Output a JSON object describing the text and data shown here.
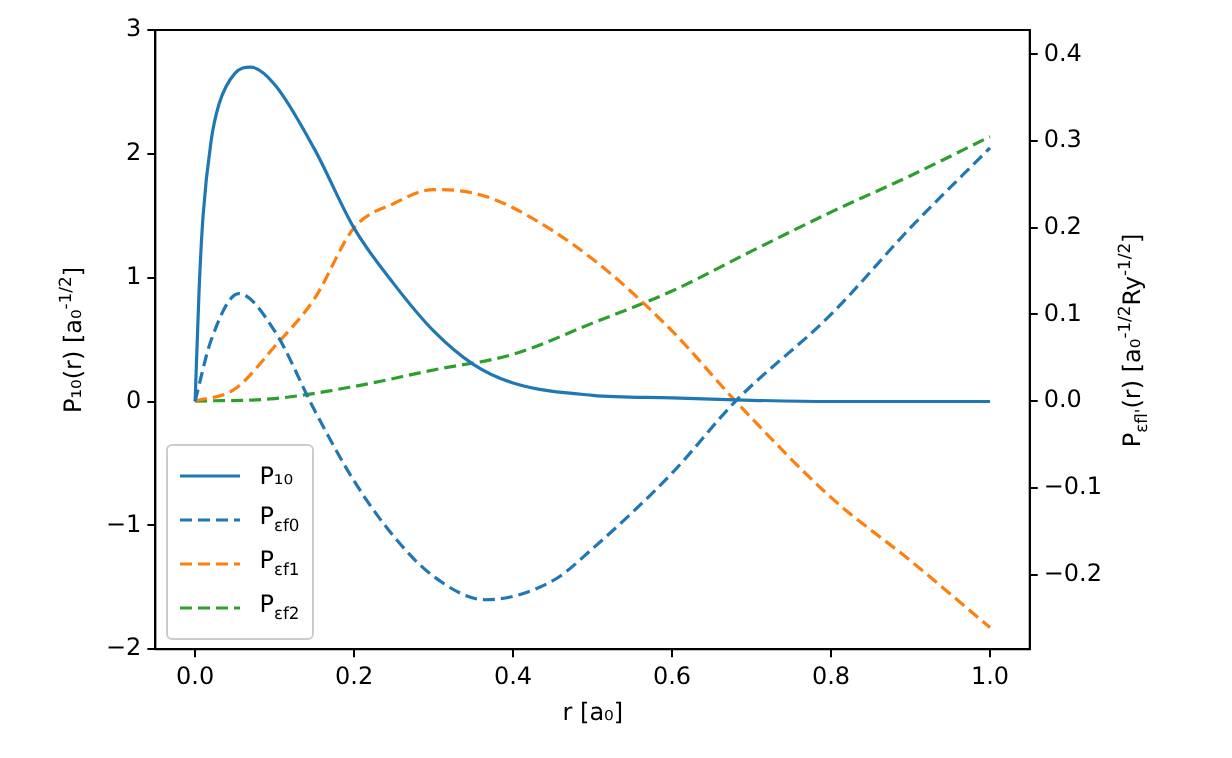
{
  "chart_data": {
    "type": "line",
    "xlabel": "r [a₀]",
    "ylabel": "P₁₀(r) [a₀$^{-1/2}$]",
    "y2label": "P$_{εfl'}$(r) [a₀$^{-1/2}$Ry$^{-1/2}$]",
    "xlim": [
      -0.05,
      1.05
    ],
    "xticks": [
      {
        "value": 0,
        "label": "0.0"
      },
      {
        "value": 0.2,
        "label": "0.2"
      },
      {
        "value": 0.4,
        "label": "0.4"
      },
      {
        "value": 0.6,
        "label": "0.6"
      },
      {
        "value": 0.8,
        "label": "0.8"
      },
      {
        "value": 1,
        "label": "1.0"
      }
    ],
    "ylim": [
      -2,
      3
    ],
    "yticks": [
      -2,
      -1,
      0,
      1,
      2,
      3
    ],
    "y2lim": [
      -0.286,
      0.428
    ],
    "y2ticks": [
      {
        "value": -0.2,
        "label": "−0.2"
      },
      {
        "value": -0.1,
        "label": "−0.1"
      },
      {
        "value": 0,
        "label": "0.0"
      },
      {
        "value": 0.1,
        "label": "0.1"
      },
      {
        "value": 0.2,
        "label": "0.2"
      },
      {
        "value": 0.3,
        "label": "0.3"
      },
      {
        "value": 0.4,
        "label": "0.4"
      }
    ],
    "grid": false,
    "legend": "bottom left",
    "marker": "none",
    "series": [
      {
        "name": "P₁₀",
        "color": "#1f77b4",
        "line_style": "solid",
        "x": [
          0,
          0.005,
          0.01,
          0.02,
          0.03,
          0.05,
          0.07,
          0.1,
          0.15,
          0.2,
          0.25,
          0.3,
          0.35,
          0.4,
          0.5,
          0.6,
          0.7,
          0.8,
          1.0
        ],
        "values": [
          0,
          0.9,
          1.5,
          2.1,
          2.4,
          2.65,
          2.7,
          2.56,
          2.04,
          1.4,
          0.95,
          0.57,
          0.3,
          0.15,
          0.05,
          0.03,
          0.01,
          0,
          0
        ]
      },
      {
        "name": "P$_{εf0}$",
        "color": "#1f77b4",
        "line_style": "dashed",
        "axis": "y2",
        "x": [
          0,
          0.02,
          0.055,
          0.1,
          0.15,
          0.2,
          0.25,
          0.3,
          0.365,
          0.45,
          0.5,
          0.6,
          0.68,
          0.8,
          0.9,
          1.0
        ],
        "values": [
          0,
          0.07,
          0.124,
          0.081,
          -0.01,
          -0.092,
          -0.156,
          -0.202,
          -0.229,
          -0.207,
          -0.17,
          -0.083,
          0,
          0.1,
          0.2,
          0.292
        ]
      },
      {
        "name": "P$_{εf1}$",
        "color": "#ff7f0e",
        "line_style": "dashed",
        "axis": "y2",
        "x": [
          0,
          0.05,
          0.1,
          0.15,
          0.2,
          0.25,
          0.3,
          0.35,
          0.4,
          0.5,
          0.6,
          0.68,
          0.8,
          0.9,
          1.0
        ],
        "values": [
          0,
          0.014,
          0.063,
          0.118,
          0.2,
          0.228,
          0.244,
          0.24,
          0.223,
          0.164,
          0.081,
          0,
          -0.111,
          -0.184,
          -0.261
        ]
      },
      {
        "name": "P$_{εf2}$",
        "color": "#2ca02c",
        "line_style": "dashed",
        "axis": "y2",
        "x": [
          0,
          0.1,
          0.2,
          0.3,
          0.4,
          0.5,
          0.6,
          0.7,
          0.8,
          0.9,
          1.0
        ],
        "values": [
          0,
          0.003,
          0.017,
          0.036,
          0.054,
          0.09,
          0.127,
          0.173,
          0.218,
          0.26,
          0.305
        ]
      }
    ]
  }
}
